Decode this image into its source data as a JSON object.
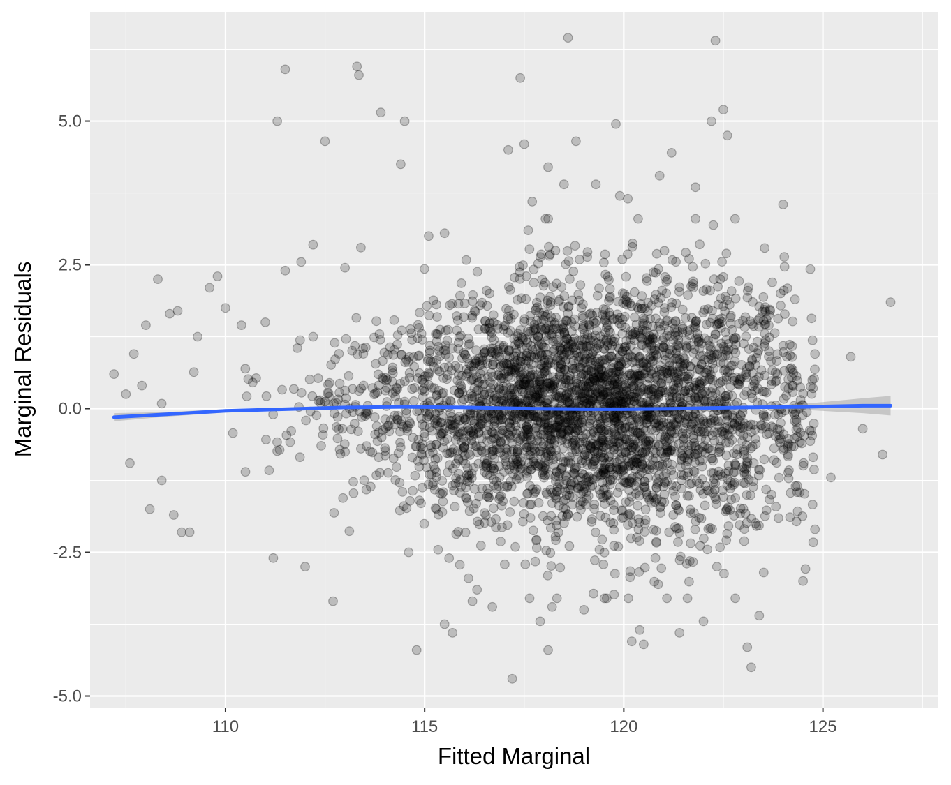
{
  "chart_data": {
    "type": "scatter",
    "xlabel": "Fitted Marginal",
    "ylabel": "Marginal Residuals",
    "xlim": [
      106.6,
      127.9
    ],
    "ylim": [
      -5.2,
      6.9
    ],
    "x_ticks": [
      110,
      115,
      120,
      125
    ],
    "x_tick_labels": [
      "110",
      "115",
      "120",
      "125"
    ],
    "y_ticks": [
      -5.0,
      -2.5,
      0.0,
      2.5,
      5.0
    ],
    "y_tick_labels": [
      "-5.0",
      "-2.5",
      "0.0",
      "2.5",
      "5.0"
    ],
    "grid": true,
    "legend": "none",
    "points": {
      "color": "#000000",
      "opacity": 0.2,
      "highlighted_outliers": [
        [
          107.2,
          0.6
        ],
        [
          107.5,
          0.25
        ],
        [
          107.6,
          -0.95
        ],
        [
          107.7,
          0.95
        ],
        [
          107.9,
          0.4
        ],
        [
          108.0,
          1.45
        ],
        [
          108.1,
          -1.75
        ],
        [
          108.3,
          2.25
        ],
        [
          108.4,
          -1.25
        ],
        [
          108.6,
          1.65
        ],
        [
          108.7,
          -1.85
        ],
        [
          108.8,
          1.7
        ],
        [
          108.9,
          -2.15
        ],
        [
          109.1,
          -2.15
        ],
        [
          109.3,
          1.25
        ],
        [
          109.6,
          2.1
        ],
        [
          109.8,
          2.3
        ],
        [
          110.0,
          1.75
        ],
        [
          110.4,
          1.45
        ],
        [
          110.5,
          -1.1
        ],
        [
          111.0,
          1.5
        ],
        [
          111.2,
          -2.6
        ],
        [
          111.5,
          2.4
        ],
        [
          111.9,
          2.55
        ],
        [
          112.0,
          -2.75
        ],
        [
          111.3,
          5.0
        ],
        [
          111.5,
          5.9
        ],
        [
          112.2,
          2.85
        ],
        [
          112.5,
          4.65
        ],
        [
          112.7,
          -3.35
        ],
        [
          113.0,
          2.45
        ],
        [
          113.3,
          5.95
        ],
        [
          113.35,
          5.8
        ],
        [
          113.4,
          2.8
        ],
        [
          113.9,
          5.15
        ],
        [
          114.4,
          4.25
        ],
        [
          114.5,
          5.0
        ],
        [
          114.6,
          -2.5
        ],
        [
          114.8,
          -4.2
        ],
        [
          115.1,
          3.0
        ],
        [
          115.5,
          3.05
        ],
        [
          115.5,
          -3.75
        ],
        [
          115.7,
          -3.9
        ],
        [
          116.1,
          -2.95
        ],
        [
          116.2,
          -3.35
        ],
        [
          116.7,
          -3.45
        ],
        [
          117.1,
          4.5
        ],
        [
          117.2,
          -4.7
        ],
        [
          117.4,
          5.75
        ],
        [
          117.5,
          4.6
        ],
        [
          117.6,
          3.1
        ],
        [
          117.7,
          3.6
        ],
        [
          117.9,
          -3.7
        ],
        [
          118.1,
          -4.2
        ],
        [
          118.1,
          4.2
        ],
        [
          118.2,
          -3.45
        ],
        [
          118.5,
          3.9
        ],
        [
          118.6,
          6.45
        ],
        [
          118.8,
          4.65
        ],
        [
          119.0,
          -3.5
        ],
        [
          119.3,
          3.9
        ],
        [
          119.8,
          4.95
        ],
        [
          119.9,
          3.7
        ],
        [
          120.1,
          3.65
        ],
        [
          120.2,
          -4.05
        ],
        [
          120.4,
          -3.85
        ],
        [
          120.5,
          -4.1
        ],
        [
          120.9,
          4.05
        ],
        [
          121.2,
          4.45
        ],
        [
          121.4,
          -3.9
        ],
        [
          121.6,
          -3.3
        ],
        [
          121.8,
          3.85
        ],
        [
          122.0,
          -3.7
        ],
        [
          122.2,
          5.0
        ],
        [
          122.3,
          6.4
        ],
        [
          122.5,
          5.2
        ],
        [
          122.6,
          4.75
        ],
        [
          122.8,
          -3.3
        ],
        [
          123.1,
          -4.15
        ],
        [
          123.2,
          -4.5
        ],
        [
          123.4,
          -3.6
        ],
        [
          124.0,
          3.55
        ],
        [
          124.3,
          1.9
        ],
        [
          124.5,
          -3.0
        ],
        [
          124.8,
          0.95
        ],
        [
          124.8,
          -2.1
        ],
        [
          125.2,
          -1.2
        ],
        [
          125.7,
          0.9
        ],
        [
          126.0,
          -0.35
        ],
        [
          126.5,
          -0.8
        ],
        [
          126.7,
          1.85
        ]
      ]
    },
    "smooth_line": {
      "color": "#3366FF",
      "x": [
        107.2,
        108.5,
        110.0,
        111.5,
        113.0,
        114.5,
        116.0,
        117.5,
        119.0,
        120.0,
        121.5,
        123.0,
        124.5,
        126.0,
        126.7
      ],
      "y": [
        -0.15,
        -0.1,
        -0.04,
        -0.01,
        0.02,
        0.03,
        0.02,
        0.0,
        -0.01,
        -0.01,
        0.0,
        0.02,
        0.03,
        0.05,
        0.05
      ],
      "se_lower": [
        -0.22,
        -0.14,
        -0.07,
        -0.03,
        0.0,
        0.01,
        0.005,
        -0.01,
        -0.02,
        -0.02,
        -0.015,
        0.0,
        -0.02,
        -0.08,
        -0.12
      ],
      "se_upper": [
        -0.08,
        -0.06,
        -0.01,
        0.01,
        0.04,
        0.05,
        0.035,
        0.01,
        0.0,
        0.0,
        0.015,
        0.04,
        0.08,
        0.18,
        0.22
      ],
      "band_color": "#999999"
    }
  }
}
